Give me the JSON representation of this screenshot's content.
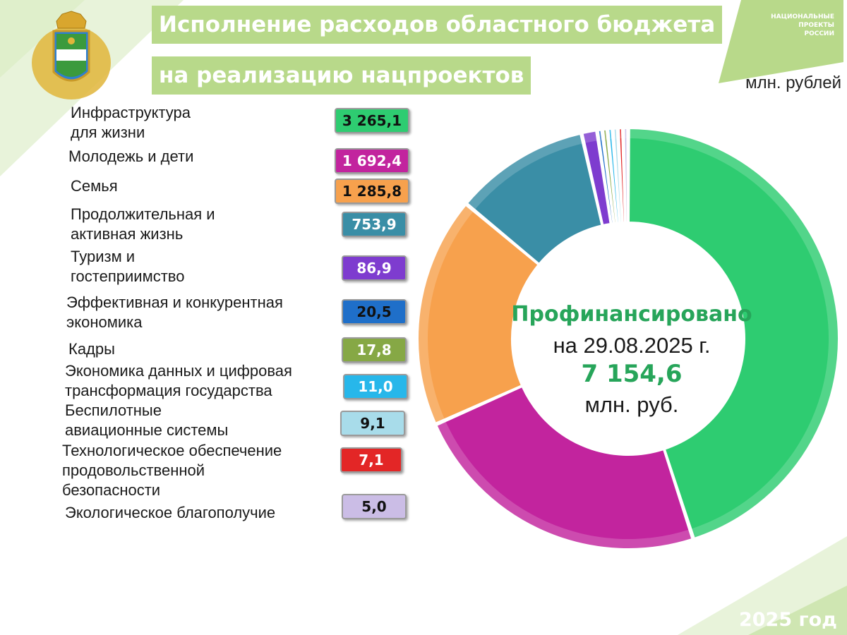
{
  "title_line1": "Исполнение расходов областного бюджета",
  "title_line2": "на реализацию нацпроектов",
  "unit": "млн. рублей",
  "logo_text": [
    "НАЦИОНАЛЬНЫЕ",
    "ПРОЕКТЫ",
    "РОССИИ"
  ],
  "center": {
    "line1": "Профинансировано",
    "line2": "на 29.08.2025   г.",
    "total": "7 154,6",
    "unit": "млн. руб."
  },
  "year_label": "2025 год",
  "colors": {
    "accent_green": "#27a55a",
    "title_bg": "#b8d98a",
    "light_green_bg": "#e8f3da"
  },
  "chart_data": {
    "type": "pie",
    "style": "donut",
    "categories": [
      "Инфраструктура для жизни",
      "Молодежь и дети",
      "Семья",
      "Продолжительная и активная жизнь",
      "Туризм и гостеприимство",
      "Эффективная и конкурентная экономика",
      "Кадры",
      "Экономика данных и цифровая трансформация государства",
      "Беспилотные авиационные системы",
      "Технологическое обеспечение продовольственной безопасности",
      "Экологическое благополучие"
    ],
    "label_lines": [
      [
        "Инфраструктура",
        "для жизни"
      ],
      [
        "Молодежь и дети"
      ],
      [
        "Семья"
      ],
      [
        "Продолжительная и",
        "активная жизнь"
      ],
      [
        "Туризм и",
        "гостеприимство"
      ],
      [
        "Эффективная и конкурентная",
        "экономика"
      ],
      [
        "Кадры"
      ],
      [
        "Экономика данных и цифровая",
        "трансформация государства"
      ],
      [
        "Беспилотные",
        "авиационные системы"
      ],
      [
        "Технологическое обеспечение",
        "продовольственной",
        "безопасности"
      ],
      [
        "Экологическое благополучие"
      ]
    ],
    "values": [
      3265.1,
      1692.4,
      1285.8,
      753.9,
      86.9,
      20.5,
      17.8,
      11.0,
      9.1,
      7.1,
      5.0
    ],
    "value_labels": [
      "3 265,1",
      "1 692,4",
      "1 285,8",
      "753,9",
      "86,9",
      "20,5",
      "17,8",
      "11,0",
      "9,1",
      "7,1",
      "5,0"
    ],
    "colors": [
      "#2ecc71",
      "#c2249e",
      "#f7a14d",
      "#3a8ea6",
      "#7e3ccf",
      "#1f6fc9",
      "#86a845",
      "#27b7ea",
      "#a8dcea",
      "#e32626",
      "#cbbde6"
    ],
    "label_text_colors": [
      "#111111",
      "#ffffff",
      "#111111",
      "#ffffff",
      "#ffffff",
      "#111111",
      "#ffffff",
      "#ffffff",
      "#111111",
      "#ffffff",
      "#111111"
    ],
    "legend": "left",
    "total": 7154.6
  }
}
